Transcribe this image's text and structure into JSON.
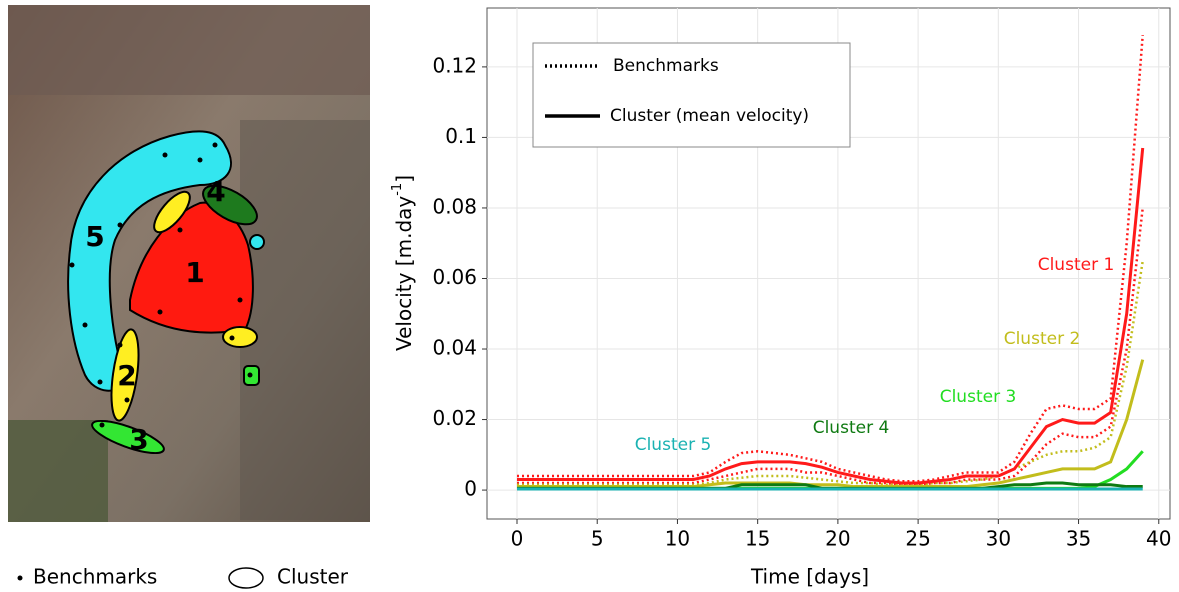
{
  "image": {
    "cluster_labels": [
      "1",
      "2",
      "3",
      "4",
      "5"
    ],
    "legend": {
      "benchmarks": "Benchmarks",
      "cluster": "Cluster"
    }
  },
  "chart_data": {
    "type": "line",
    "xlabel": "Time [days]",
    "ylabel": [
      "Velocity [m.day",
      "-1",
      "]"
    ],
    "x": [
      0,
      1,
      2,
      3,
      4,
      5,
      6,
      7,
      8,
      9,
      10,
      11,
      12,
      13,
      14,
      15,
      16,
      17,
      18,
      19,
      20,
      21,
      22,
      23,
      24,
      25,
      26,
      27,
      28,
      29,
      30,
      31,
      32,
      33,
      34,
      35,
      36,
      37,
      38,
      39
    ],
    "xlim": [
      -1.87,
      40.7
    ],
    "xticks": [
      0,
      5,
      10,
      15,
      20,
      25,
      30,
      35,
      40
    ],
    "ylim": [
      -0.0082,
      0.1367
    ],
    "yticks": [
      0,
      0.02,
      0.04,
      0.06,
      0.08,
      0.1,
      0.12
    ],
    "grid": true,
    "legend": {
      "entries": [
        {
          "label": "Benchmarks",
          "style": "dotted"
        },
        {
          "label": "Cluster (mean velocity)",
          "style": "solid"
        }
      ]
    },
    "series": [
      {
        "name": "Cluster 1",
        "color": "#ff1a1a",
        "values": [
          0.003,
          0.003,
          0.003,
          0.003,
          0.003,
          0.003,
          0.003,
          0.003,
          0.003,
          0.003,
          0.003,
          0.003,
          0.004,
          0.006,
          0.0075,
          0.008,
          0.008,
          0.008,
          0.0075,
          0.0065,
          0.005,
          0.004,
          0.003,
          0.0025,
          0.002,
          0.002,
          0.0025,
          0.003,
          0.004,
          0.004,
          0.004,
          0.006,
          0.012,
          0.018,
          0.02,
          0.019,
          0.019,
          0.022,
          0.05,
          0.097
        ]
      },
      {
        "name": "Cluster 2",
        "color": "#c2bd1c",
        "values": [
          0.001,
          0.001,
          0.001,
          0.001,
          0.001,
          0.001,
          0.001,
          0.001,
          0.001,
          0.001,
          0.001,
          0.001,
          0.0015,
          0.002,
          0.002,
          0.002,
          0.002,
          0.002,
          0.0015,
          0.0015,
          0.0015,
          0.001,
          0.001,
          0.001,
          0.001,
          0.001,
          0.001,
          0.001,
          0.001,
          0.0015,
          0.002,
          0.003,
          0.004,
          0.005,
          0.006,
          0.006,
          0.006,
          0.008,
          0.02,
          0.037
        ]
      },
      {
        "name": "Cluster 3",
        "color": "#22dd22",
        "values": [
          0.0005,
          0.0005,
          0.0005,
          0.0005,
          0.0005,
          0.0005,
          0.0005,
          0.0005,
          0.0005,
          0.0005,
          0.0005,
          0.0005,
          0.0005,
          0.0005,
          0.0005,
          0.0005,
          0.0005,
          0.0005,
          0.0005,
          0.0005,
          0.0005,
          0.0005,
          0.0005,
          0.0005,
          0.0005,
          0.0005,
          0.0005,
          0.0005,
          0.0005,
          0.0005,
          0.0005,
          0.0005,
          0.0005,
          0.0005,
          0.0005,
          0.0005,
          0.001,
          0.003,
          0.006,
          0.011
        ]
      },
      {
        "name": "Cluster 4",
        "color": "#0f7a12",
        "values": [
          0.0005,
          0.0005,
          0.0005,
          0.0005,
          0.0005,
          0.0005,
          0.0005,
          0.0005,
          0.0005,
          0.0005,
          0.0005,
          0.0005,
          0.0005,
          0.0005,
          0.0015,
          0.0015,
          0.0015,
          0.0015,
          0.0015,
          0.0005,
          0.0005,
          0.0005,
          0.0005,
          0.0005,
          0.0005,
          0.0005,
          0.0005,
          0.0005,
          0.0005,
          0.0005,
          0.001,
          0.0015,
          0.0015,
          0.002,
          0.002,
          0.0015,
          0.0015,
          0.0015,
          0.001,
          0.001
        ]
      },
      {
        "name": "Cluster 5",
        "color": "#1ab2b2",
        "values": [
          0.0003,
          0.0003,
          0.0003,
          0.0003,
          0.0003,
          0.0003,
          0.0003,
          0.0003,
          0.0003,
          0.0003,
          0.0003,
          0.0003,
          0.0003,
          0.0003,
          0.0003,
          0.0003,
          0.0003,
          0.0003,
          0.0003,
          0.0003,
          0.0003,
          0.0003,
          0.0003,
          0.0003,
          0.0003,
          0.0003,
          0.0003,
          0.0003,
          0.0003,
          0.0003,
          0.0003,
          0.0003,
          0.0003,
          0.0003,
          0.0003,
          0.0003,
          0.0003,
          0.0003,
          0.0003,
          0.0003
        ]
      }
    ],
    "benchmark_series": [
      {
        "color": "#ff1a1a",
        "values": [
          0.004,
          0.004,
          0.004,
          0.004,
          0.004,
          0.004,
          0.004,
          0.004,
          0.004,
          0.004,
          0.004,
          0.004,
          0.005,
          0.008,
          0.0105,
          0.011,
          0.0105,
          0.01,
          0.009,
          0.008,
          0.006,
          0.005,
          0.004,
          0.003,
          0.0025,
          0.0025,
          0.003,
          0.004,
          0.005,
          0.005,
          0.005,
          0.008,
          0.016,
          0.023,
          0.024,
          0.023,
          0.023,
          0.026,
          0.07,
          0.129
        ]
      },
      {
        "color": "#ff1a1a",
        "values": [
          0.002,
          0.002,
          0.002,
          0.002,
          0.002,
          0.002,
          0.002,
          0.002,
          0.002,
          0.002,
          0.002,
          0.002,
          0.003,
          0.004,
          0.005,
          0.006,
          0.006,
          0.006,
          0.005,
          0.005,
          0.004,
          0.003,
          0.002,
          0.002,
          0.0015,
          0.0015,
          0.002,
          0.002,
          0.003,
          0.003,
          0.003,
          0.004,
          0.008,
          0.013,
          0.016,
          0.015,
          0.015,
          0.018,
          0.04,
          0.08
        ]
      },
      {
        "color": "#c2bd1c",
        "values": [
          0.0015,
          0.0015,
          0.0015,
          0.0015,
          0.0015,
          0.0015,
          0.0015,
          0.0015,
          0.0015,
          0.0015,
          0.0015,
          0.0015,
          0.002,
          0.003,
          0.0035,
          0.004,
          0.004,
          0.004,
          0.0035,
          0.003,
          0.0025,
          0.002,
          0.002,
          0.0015,
          0.0015,
          0.0015,
          0.002,
          0.002,
          0.0025,
          0.003,
          0.004,
          0.006,
          0.008,
          0.01,
          0.011,
          0.011,
          0.012,
          0.015,
          0.035,
          0.065
        ]
      }
    ]
  }
}
